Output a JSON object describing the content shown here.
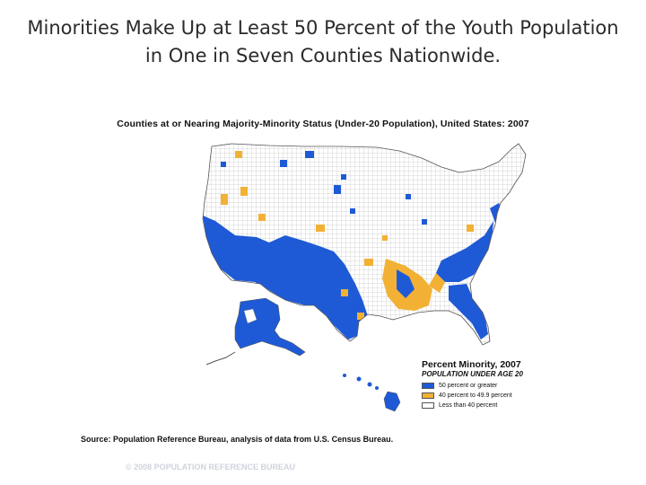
{
  "slide": {
    "title_line1": "Minorities Make Up at Least 50 Percent of the Youth Population",
    "title_line2": "in One in Seven Counties Nationwide."
  },
  "map": {
    "title": "Counties at or Nearing Majority-Minority Status (Under-20 Population), United States: 2007",
    "colors": {
      "majority": "#1f5ad6",
      "near": "#f2b134",
      "less": "#ffffff",
      "county_lines": "#8a8a8a"
    }
  },
  "legend": {
    "title": "Percent Minority, 2007",
    "subtitle": "POPULATION UNDER AGE 20",
    "items": [
      {
        "label": "50 percent or greater",
        "color": "#1f5ad6"
      },
      {
        "label": "40 percent to 49.9 percent",
        "color": "#f2b134"
      },
      {
        "label": "Less than 40 percent",
        "color": "#ffffff"
      }
    ]
  },
  "source": "Source: Population Reference Bureau, analysis of data from U.S. Census Bureau.",
  "copyright": "© 2008 POPULATION REFERENCE BUREAU"
}
